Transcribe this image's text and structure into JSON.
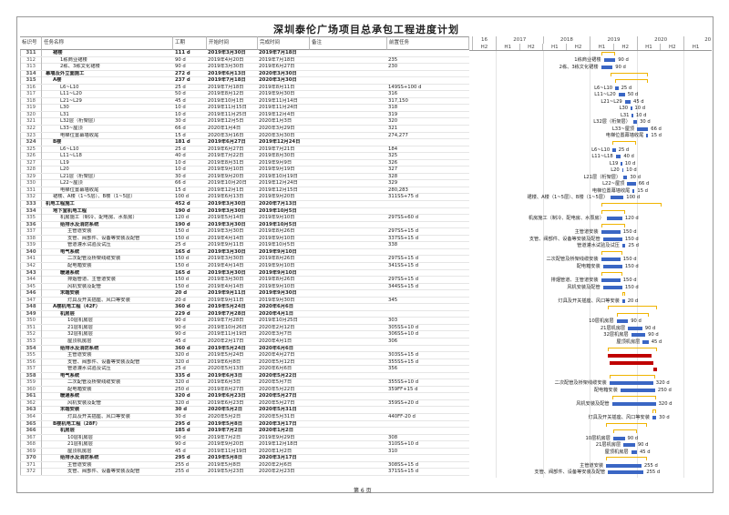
{
  "title": "深圳泰伦广场项目总承包工程进度计划",
  "columns": {
    "id": "标识号",
    "name": "任务名称",
    "duration": "工期",
    "start": "开始时间",
    "finish": "完成时间",
    "note": "备注",
    "pred": "前置任务"
  },
  "timescale": {
    "years": [
      "16",
      "2017",
      "2018",
      "2019",
      "2020",
      "20"
    ],
    "halves": [
      "H2",
      "H1",
      "H2",
      "H1",
      "H2",
      "H1",
      "H2",
      "H1",
      "H2",
      "H1"
    ]
  },
  "colors": {
    "task_bar": "#3a66c4",
    "critical_bar": "#c00000",
    "summary_bracket": "#f0b400"
  },
  "footer": "第 6 页",
  "tasks": [
    {
      "id": "311",
      "name": "裙楼",
      "dur": "111 d",
      "start": "2019年3月30日",
      "finish": "2019年7月18日",
      "pred": "",
      "level": 2,
      "summary": true
    },
    {
      "id": "312",
      "name": "1栋商业裙楼",
      "dur": "90 d",
      "start": "2019年4月20日",
      "finish": "2019年7月18日",
      "pred": "235",
      "level": 3
    },
    {
      "id": "313",
      "name": "2栋、3栋文化裙楼",
      "dur": "90 d",
      "start": "2019年3月30日",
      "finish": "2019年6月27日",
      "pred": "230",
      "level": 3
    },
    {
      "id": "314",
      "name": "幕墙及外立面施工",
      "dur": "272 d",
      "start": "2019年6月13日",
      "finish": "2020年3月30日",
      "pred": "",
      "level": 1,
      "summary": true
    },
    {
      "id": "315",
      "name": "A楼",
      "dur": "237 d",
      "start": "2019年7月18日",
      "finish": "2020年3月30日",
      "pred": "",
      "level": 2,
      "summary": true
    },
    {
      "id": "316",
      "name": "L6~L10",
      "dur": "25 d",
      "start": "2019年7月18日",
      "finish": "2019年8月11日",
      "pred": "149SS+100 d",
      "level": 3
    },
    {
      "id": "317",
      "name": "L11~L20",
      "dur": "50 d",
      "start": "2019年8月12日",
      "finish": "2019年9月30日",
      "pred": "316",
      "level": 3
    },
    {
      "id": "318",
      "name": "L21~L29",
      "dur": "45 d",
      "start": "2019年10月1日",
      "finish": "2019年11月14日",
      "pred": "317,150",
      "level": 3
    },
    {
      "id": "319",
      "name": "L30",
      "dur": "10 d",
      "start": "2019年11月15日",
      "finish": "2019年11月24日",
      "pred": "318",
      "level": 3
    },
    {
      "id": "320",
      "name": "L31",
      "dur": "10 d",
      "start": "2019年11月25日",
      "finish": "2019年12月4日",
      "pred": "319",
      "level": 3
    },
    {
      "id": "321",
      "name": "L32层（桁架层）",
      "dur": "30 d",
      "start": "2019年12月5日",
      "finish": "2020年1月3日",
      "pred": "320",
      "level": 3
    },
    {
      "id": "322",
      "name": "L33~屋顶",
      "dur": "66 d",
      "start": "2020年1月4日",
      "finish": "2020年3月29日",
      "pred": "321",
      "level": 3
    },
    {
      "id": "323",
      "name": "电梯位置幕墙收尾",
      "dur": "15 d",
      "start": "2020年3月16日",
      "finish": "2020年3月30日",
      "pred": "274,277",
      "level": 3
    },
    {
      "id": "324",
      "name": "B楼",
      "dur": "181 d",
      "start": "2019年6月27日",
      "finish": "2019年12月24日",
      "pred": "",
      "level": 2,
      "summary": true
    },
    {
      "id": "325",
      "name": "L6~L10",
      "dur": "25 d",
      "start": "2019年6月27日",
      "finish": "2019年7月21日",
      "pred": "184",
      "level": 3
    },
    {
      "id": "326",
      "name": "L11~L18",
      "dur": "40 d",
      "start": "2019年7月22日",
      "finish": "2019年8月30日",
      "pred": "325",
      "level": 3
    },
    {
      "id": "327",
      "name": "L19",
      "dur": "10 d",
      "start": "2019年8月31日",
      "finish": "2019年9月9日",
      "pred": "326",
      "level": 3
    },
    {
      "id": "328",
      "name": "L20",
      "dur": "10 d",
      "start": "2019年9月10日",
      "finish": "2019年9月19日",
      "pred": "327",
      "level": 3
    },
    {
      "id": "329",
      "name": "L21层（桁架层）",
      "dur": "30 d",
      "start": "2019年9月20日",
      "finish": "2019年10月19日",
      "pred": "328",
      "level": 3
    },
    {
      "id": "330",
      "name": "L22~屋顶",
      "dur": "66 d",
      "start": "2019年10月20日",
      "finish": "2019年12月24日",
      "pred": "329",
      "level": 3
    },
    {
      "id": "331",
      "name": "电梯位置幕墙收尾",
      "dur": "15 d",
      "start": "2019年12月1日",
      "finish": "2019年12月15日",
      "pred": "280,283",
      "level": 3
    },
    {
      "id": "332",
      "name": "裙楼、A楼（1~5层）、B楼（1~5层）",
      "dur": "100 d",
      "start": "2019年6月13日",
      "finish": "2019年9月20日",
      "pred": "311SS+75 d",
      "level": 2
    },
    {
      "id": "333",
      "name": "机电工程施工",
      "dur": "452 d",
      "start": "2019年3月30日",
      "finish": "2020年7月13日",
      "pred": "",
      "level": 1,
      "summary": true
    },
    {
      "id": "334",
      "name": "地下室机电工程",
      "dur": "190 d",
      "start": "2019年3月30日",
      "finish": "2019年10月5日",
      "pred": "",
      "level": 2,
      "summary": true
    },
    {
      "id": "335",
      "name": "机房施工（制冷、配电房、水泵房）",
      "dur": "120 d",
      "start": "2019年5月14日",
      "finish": "2019年9月10日",
      "pred": "297SS+60 d",
      "level": 3
    },
    {
      "id": "336",
      "name": "给排水及消防系统",
      "dur": "190 d",
      "start": "2019年3月30日",
      "finish": "2019年10月5日",
      "pred": "",
      "level": 3,
      "summary": true
    },
    {
      "id": "337",
      "name": "主管道安装",
      "dur": "150 d",
      "start": "2019年3月30日",
      "finish": "2019年8月26日",
      "pred": "297SS+15 d",
      "level": 4
    },
    {
      "id": "338",
      "name": "支管、阀部件、设备等安装及配管",
      "dur": "150 d",
      "start": "2019年4月14日",
      "finish": "2019年9月10日",
      "pred": "337SS+15 d",
      "level": 4
    },
    {
      "id": "339",
      "name": "管道灌水试验及试压",
      "dur": "25 d",
      "start": "2019年9月11日",
      "finish": "2019年10月5日",
      "pred": "338",
      "level": 4
    },
    {
      "id": "340",
      "name": "电气系统",
      "dur": "165 d",
      "start": "2019年3月30日",
      "finish": "2019年9月10日",
      "pred": "",
      "level": 3,
      "summary": true
    },
    {
      "id": "341",
      "name": "二次配管及桥架线缆安装",
      "dur": "150 d",
      "start": "2019年3月30日",
      "finish": "2019年8月26日",
      "pred": "297SS+15 d",
      "level": 4
    },
    {
      "id": "342",
      "name": "配电箱安装",
      "dur": "150 d",
      "start": "2019年4月14日",
      "finish": "2019年9月10日",
      "pred": "341SS+15 d",
      "level": 4
    },
    {
      "id": "343",
      "name": "暖通系统",
      "dur": "165 d",
      "start": "2019年3月30日",
      "finish": "2019年9月10日",
      "pred": "",
      "level": 3,
      "summary": true
    },
    {
      "id": "344",
      "name": "排烟管道、主管道安装",
      "dur": "150 d",
      "start": "2019年3月30日",
      "finish": "2019年8月26日",
      "pred": "297SS+15 d",
      "level": 4
    },
    {
      "id": "345",
      "name": "风机安装及配管",
      "dur": "150 d",
      "start": "2019年4月14日",
      "finish": "2019年9月10日",
      "pred": "344SS+15 d",
      "level": 4
    },
    {
      "id": "346",
      "name": "末端安装",
      "dur": "20 d",
      "start": "2019年9月11日",
      "finish": "2019年9月30日",
      "pred": "",
      "level": 3,
      "summary": true
    },
    {
      "id": "347",
      "name": "灯具及开关插座、风口等安装",
      "dur": "20 d",
      "start": "2019年9月11日",
      "finish": "2019年9月30日",
      "pred": "345",
      "level": 4
    },
    {
      "id": "348",
      "name": "A楼机电工程（42F）",
      "dur": "360 d",
      "start": "2019年5月24日",
      "finish": "2020年6月6日",
      "pred": "",
      "level": 2,
      "summary": true
    },
    {
      "id": "349",
      "name": "机房层",
      "dur": "229 d",
      "start": "2019年7月28日",
      "finish": "2020年4月1日",
      "pred": "",
      "level": 3,
      "summary": true
    },
    {
      "id": "350",
      "name": "10层机房层",
      "dur": "90 d",
      "start": "2019年7月28日",
      "finish": "2019年10月25日",
      "pred": "303",
      "level": 4
    },
    {
      "id": "351",
      "name": "21层机房层",
      "dur": "90 d",
      "start": "2019年10月26日",
      "finish": "2020年2月12日",
      "pred": "305SS+10 d",
      "level": 4
    },
    {
      "id": "352",
      "name": "32层机房层",
      "dur": "90 d",
      "start": "2019年11月19日",
      "finish": "2020年3月7日",
      "pred": "306SS+10 d",
      "level": 4
    },
    {
      "id": "353",
      "name": "屋顶机房层",
      "dur": "45 d",
      "start": "2020年2月17日",
      "finish": "2020年4月1日",
      "pred": "306",
      "level": 4
    },
    {
      "id": "354",
      "name": "给排水及消防系统",
      "dur": "360 d",
      "start": "2019年5月24日",
      "finish": "2020年6月6日",
      "pred": "",
      "level": 3,
      "summary": true
    },
    {
      "id": "355",
      "name": "主管道安装",
      "dur": "320 d",
      "start": "2019年5月24日",
      "finish": "2020年4月27日",
      "pred": "303SS+15 d",
      "level": 4,
      "critical": true
    },
    {
      "id": "356",
      "name": "支管、阀部件、设备等安装及配管",
      "dur": "320 d",
      "start": "2019年6月8日",
      "finish": "2020年5月12日",
      "pred": "355SS+15 d",
      "level": 4,
      "critical": true
    },
    {
      "id": "357",
      "name": "管道灌水试验及试压",
      "dur": "25 d",
      "start": "2020年5月13日",
      "finish": "2020年6月6日",
      "pred": "356",
      "level": 4,
      "critical": true
    },
    {
      "id": "358",
      "name": "电气系统",
      "dur": "335 d",
      "start": "2019年6月3日",
      "finish": "2020年5月22日",
      "pred": "",
      "level": 3,
      "summary": true
    },
    {
      "id": "359",
      "name": "二次配管及桥架线缆安装",
      "dur": "320 d",
      "start": "2019年6月3日",
      "finish": "2020年5月7日",
      "pred": "355SS+10 d",
      "level": 4
    },
    {
      "id": "360",
      "name": "配电箱安装",
      "dur": "250 d",
      "start": "2019年8月27日",
      "finish": "2020年5月22日",
      "pred": "359FF+15 d",
      "level": 4
    },
    {
      "id": "361",
      "name": "暖通系统",
      "dur": "320 d",
      "start": "2019年6月23日",
      "finish": "2020年5月27日",
      "pred": "",
      "level": 3,
      "summary": true
    },
    {
      "id": "362",
      "name": "风机安装及配管",
      "dur": "320 d",
      "start": "2019年6月23日",
      "finish": "2020年5月27日",
      "pred": "359SS+20 d",
      "level": 4
    },
    {
      "id": "363",
      "name": "末端安装",
      "dur": "30 d",
      "start": "2020年5月2日",
      "finish": "2020年5月31日",
      "pred": "",
      "level": 3,
      "summary": true
    },
    {
      "id": "364",
      "name": "灯具及开关插座、风口等安装",
      "dur": "30 d",
      "start": "2020年5月2日",
      "finish": "2020年5月31日",
      "pred": "440FF-20 d",
      "level": 4
    },
    {
      "id": "365",
      "name": "B楼机电工程（28F）",
      "dur": "295 d",
      "start": "2019年5月8日",
      "finish": "2020年3月17日",
      "pred": "",
      "level": 2,
      "summary": true
    },
    {
      "id": "366",
      "name": "机房层",
      "dur": "185 d",
      "start": "2019年7月2日",
      "finish": "2020年1月2日",
      "pred": "",
      "level": 3,
      "summary": true
    },
    {
      "id": "367",
      "name": "10层机房层",
      "dur": "90 d",
      "start": "2019年7月2日",
      "finish": "2019年9月29日",
      "pred": "308",
      "level": 4
    },
    {
      "id": "368",
      "name": "21层机房层",
      "dur": "90 d",
      "start": "2019年9月20日",
      "finish": "2019年12月18日",
      "pred": "310SS+10 d",
      "level": 4
    },
    {
      "id": "369",
      "name": "屋顶机房层",
      "dur": "45 d",
      "start": "2019年11月19日",
      "finish": "2020年1月2日",
      "pred": "310",
      "level": 4
    },
    {
      "id": "370",
      "name": "给排水及消防系统",
      "dur": "295 d",
      "start": "2019年5月8日",
      "finish": "2020年3月17日",
      "pred": "",
      "level": 3,
      "summary": true
    },
    {
      "id": "371",
      "name": "主管道安装",
      "dur": "255 d",
      "start": "2019年5月8日",
      "finish": "2020年2月6日",
      "pred": "308SS+15 d",
      "level": 4
    },
    {
      "id": "372",
      "name": "支管、阀部件、设备等安装及配管",
      "dur": "255 d",
      "start": "2019年5月23日",
      "finish": "2020年2月23日",
      "pred": "371SS+15 d",
      "level": 4
    }
  ]
}
